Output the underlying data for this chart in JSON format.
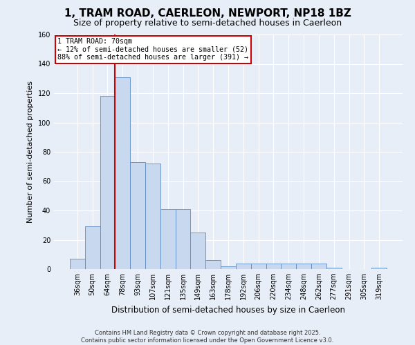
{
  "title": "1, TRAM ROAD, CAERLEON, NEWPORT, NP18 1BZ",
  "subtitle": "Size of property relative to semi-detached houses in Caerleon",
  "xlabel": "Distribution of semi-detached houses by size in Caerleon",
  "ylabel": "Number of semi-detached properties",
  "categories": [
    "36sqm",
    "50sqm",
    "64sqm",
    "78sqm",
    "93sqm",
    "107sqm",
    "121sqm",
    "135sqm",
    "149sqm",
    "163sqm",
    "178sqm",
    "192sqm",
    "206sqm",
    "220sqm",
    "234sqm",
    "248sqm",
    "262sqm",
    "277sqm",
    "291sqm",
    "305sqm",
    "319sqm"
  ],
  "values": [
    7,
    29,
    118,
    131,
    73,
    72,
    41,
    41,
    25,
    6,
    2,
    4,
    4,
    4,
    4,
    4,
    4,
    1,
    0,
    0,
    1
  ],
  "bar_color": "#c8d8ee",
  "bar_edge_color": "#5b8ac4",
  "annotation_title": "1 TRAM ROAD: 70sqm",
  "annotation_line1": "← 12% of semi-detached houses are smaller (52)",
  "annotation_line2": "88% of semi-detached houses are larger (391) →",
  "vline_color": "#cc0000",
  "vline_bin_index": 2,
  "ylim": [
    0,
    160
  ],
  "yticks": [
    0,
    20,
    40,
    60,
    80,
    100,
    120,
    140,
    160
  ],
  "footer_line1": "Contains HM Land Registry data © Crown copyright and database right 2025.",
  "footer_line2": "Contains public sector information licensed under the Open Government Licence v3.0.",
  "background_color": "#e8eef8",
  "plot_bg_color": "#e8eef8",
  "title_fontsize": 11,
  "subtitle_fontsize": 9,
  "annotation_box_color": "#ffffff",
  "annotation_box_edge_color": "#cc0000"
}
